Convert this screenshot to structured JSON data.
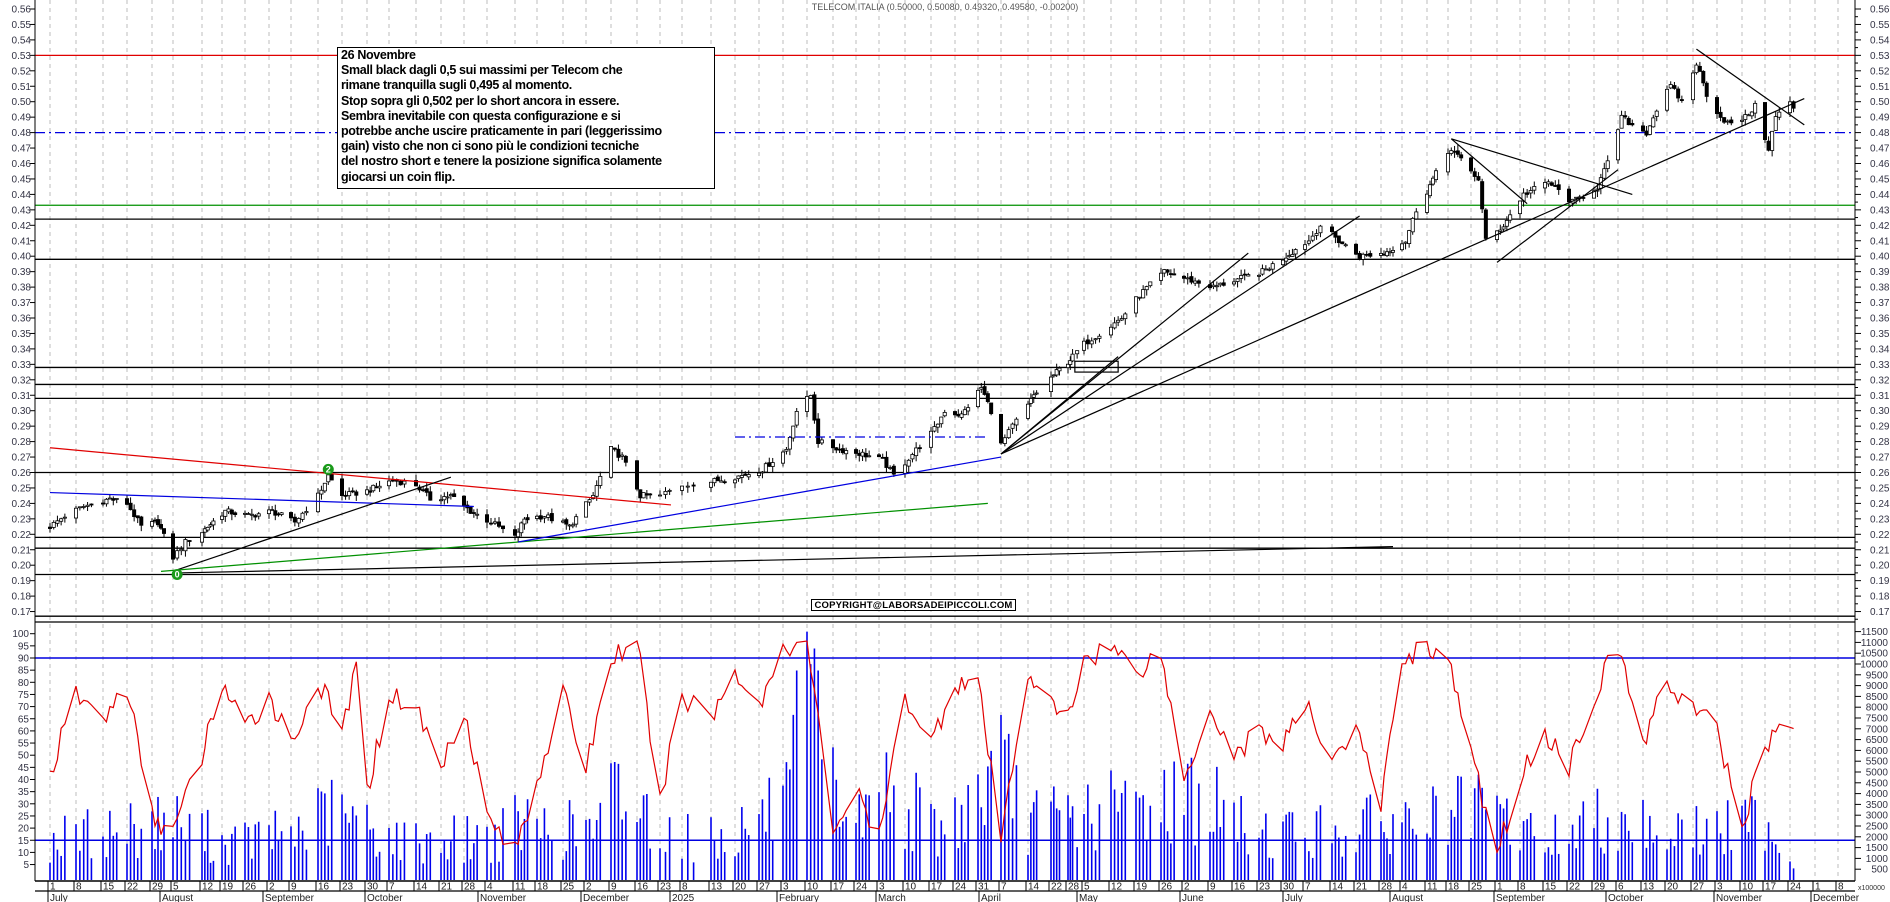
{
  "title": "TELECOM ITALIA (0.50000, 0.50080, 0.49320, 0.49580, -0.00200)",
  "annotation": {
    "lines": [
      "26 Novembre",
      "Small black dagli 0,5 sui massimi per Telecom che",
      "rimane tranquilla sugli 0,495 al momento.",
      "Stop sopra gli 0,502 per lo short ancora in essere.",
      "Sembra inevitabile con questa configurazione e si",
      "potrebbe anche uscire praticamente in pari (leggerissimo",
      "gain) visto che non ci sono più le condizioni tecniche",
      "del nostro short e tenere la posizione significa solamente",
      "giocarsi un coin flip."
    ]
  },
  "copyright": "COPYRIGHT@LABORSADEIPICCOLI.COM",
  "volume_unit": "x100000",
  "markers": [
    {
      "label": "0",
      "date": "2024-08-06",
      "price": 0.194,
      "color": "#1a9a1a"
    },
    {
      "label": "2",
      "date": "2024-09-19",
      "price": 0.262,
      "color": "#1a9a1a"
    }
  ],
  "chart_data": {
    "type": "candlestick",
    "price_axis": {
      "min": 0.17,
      "max": 0.56,
      "step": 0.01
    },
    "oscillator_axis": {
      "min": 5,
      "max": 100,
      "step": 5
    },
    "volume_axis": {
      "min": 500,
      "max": 11500,
      "step": 500
    },
    "grid": "vertical dashed weekly",
    "week_labels": [
      "1",
      "8",
      "15",
      "22",
      "29",
      "5",
      "12",
      "19",
      "26",
      "2",
      "9",
      "16",
      "23",
      "30",
      "7",
      "14",
      "21",
      "28",
      "4",
      "11",
      "18",
      "25",
      "2",
      "9",
      "16",
      "23",
      "8",
      "13",
      "20",
      "27",
      "3",
      "10",
      "17",
      "24",
      "3",
      "10",
      "17",
      "24",
      "31",
      "7",
      "14",
      "22",
      "28",
      "5",
      "12",
      "19",
      "26",
      "2",
      "9",
      "16",
      "23",
      "30",
      "7",
      "14",
      "21",
      "28",
      "4",
      "11",
      "18",
      "25",
      "1",
      "8",
      "15",
      "22",
      "29",
      "6",
      "13",
      "20",
      "27",
      "3",
      "10",
      "17",
      "24",
      "1",
      "8"
    ],
    "month_labels": [
      "July",
      "August",
      "September",
      "October",
      "November",
      "December",
      "2025",
      "February",
      "March",
      "April",
      "May",
      "June",
      "July",
      "August",
      "September",
      "October",
      "November",
      "December"
    ],
    "price_closes": [
      [
        "2024-07-01",
        0.225
      ],
      [
        "2024-07-05",
        0.232
      ],
      [
        "2024-07-10",
        0.238
      ],
      [
        "2024-07-17",
        0.243
      ],
      [
        "2024-07-22",
        0.24
      ],
      [
        "2024-07-26",
        0.225
      ],
      [
        "2024-07-31",
        0.228
      ],
      [
        "2024-08-05",
        0.205
      ],
      [
        "2024-08-08",
        0.215
      ],
      [
        "2024-08-14",
        0.225
      ],
      [
        "2024-08-20",
        0.235
      ],
      [
        "2024-08-27",
        0.232
      ],
      [
        "2024-09-03",
        0.235
      ],
      [
        "2024-09-10",
        0.228
      ],
      [
        "2024-09-16",
        0.245
      ],
      [
        "2024-09-19",
        0.258
      ],
      [
        "2024-09-23",
        0.245
      ],
      [
        "2024-09-30",
        0.248
      ],
      [
        "2024-10-08",
        0.255
      ],
      [
        "2024-10-14",
        0.252
      ],
      [
        "2024-10-18",
        0.243
      ],
      [
        "2024-10-24",
        0.245
      ],
      [
        "2024-10-30",
        0.235
      ],
      [
        "2024-11-05",
        0.228
      ],
      [
        "2024-11-11",
        0.218
      ],
      [
        "2024-11-14",
        0.23
      ],
      [
        "2024-11-20",
        0.232
      ],
      [
        "2024-11-27",
        0.225
      ],
      [
        "2024-12-04",
        0.245
      ],
      [
        "2024-12-09",
        0.275
      ],
      [
        "2024-12-12",
        0.27
      ],
      [
        "2024-12-17",
        0.245
      ],
      [
        "2024-12-23",
        0.245
      ],
      [
        "2025-01-08",
        0.252
      ],
      [
        "2025-01-15",
        0.255
      ],
      [
        "2025-01-22",
        0.258
      ],
      [
        "2025-01-28",
        0.262
      ],
      [
        "2025-02-04",
        0.275
      ],
      [
        "2025-02-07",
        0.3
      ],
      [
        "2025-02-11",
        0.31
      ],
      [
        "2025-02-13",
        0.28
      ],
      [
        "2025-02-19",
        0.275
      ],
      [
        "2025-02-26",
        0.272
      ],
      [
        "2025-03-04",
        0.268
      ],
      [
        "2025-03-07",
        0.258
      ],
      [
        "2025-03-12",
        0.272
      ],
      [
        "2025-03-18",
        0.288
      ],
      [
        "2025-03-21",
        0.3
      ],
      [
        "2025-03-26",
        0.297
      ],
      [
        "2025-04-01",
        0.315
      ],
      [
        "2025-04-04",
        0.3
      ],
      [
        "2025-04-07",
        0.278
      ],
      [
        "2025-04-10",
        0.29
      ],
      [
        "2025-04-16",
        0.31
      ],
      [
        "2025-04-24",
        0.325
      ],
      [
        "2025-04-30",
        0.335
      ],
      [
        "2025-05-06",
        0.345
      ],
      [
        "2025-05-12",
        0.355
      ],
      [
        "2025-05-15",
        0.36
      ],
      [
        "2025-05-20",
        0.375
      ],
      [
        "2025-05-27",
        0.39
      ],
      [
        "2025-06-03",
        0.385
      ],
      [
        "2025-06-10",
        0.38
      ],
      [
        "2025-06-17",
        0.385
      ],
      [
        "2025-06-24",
        0.39
      ],
      [
        "2025-07-01",
        0.4
      ],
      [
        "2025-07-08",
        0.41
      ],
      [
        "2025-07-11",
        0.42
      ],
      [
        "2025-07-16",
        0.41
      ],
      [
        "2025-07-22",
        0.4
      ],
      [
        "2025-07-29",
        0.402
      ],
      [
        "2025-08-05",
        0.41
      ],
      [
        "2025-08-08",
        0.43
      ],
      [
        "2025-08-13",
        0.45
      ],
      [
        "2025-08-19",
        0.47
      ],
      [
        "2025-08-22",
        0.462
      ],
      [
        "2025-08-27",
        0.45
      ],
      [
        "2025-08-29",
        0.41
      ],
      [
        "2025-09-03",
        0.42
      ],
      [
        "2025-09-09",
        0.44
      ],
      [
        "2025-09-16",
        0.448
      ],
      [
        "2025-09-23",
        0.435
      ],
      [
        "2025-09-30",
        0.445
      ],
      [
        "2025-10-03",
        0.46
      ],
      [
        "2025-10-07",
        0.49
      ],
      [
        "2025-10-10",
        0.485
      ],
      [
        "2025-10-14",
        0.48
      ],
      [
        "2025-10-17",
        0.495
      ],
      [
        "2025-10-21",
        0.51
      ],
      [
        "2025-10-24",
        0.5
      ],
      [
        "2025-10-28",
        0.525
      ],
      [
        "2025-10-31",
        0.505
      ],
      [
        "2025-11-04",
        0.49
      ],
      [
        "2025-11-07",
        0.485
      ],
      [
        "2025-11-11",
        0.49
      ],
      [
        "2025-11-14",
        0.497
      ],
      [
        "2025-11-18",
        0.47
      ],
      [
        "2025-11-20",
        0.49
      ],
      [
        "2025-11-24",
        0.5
      ],
      [
        "2025-11-25",
        0.496
      ]
    ],
    "last_candle": {
      "open": 0.5,
      "high": 0.5008,
      "low": 0.4932,
      "close": 0.4958,
      "change": -0.002
    },
    "oscillator": [
      [
        "2024-07-01",
        42
      ],
      [
        "2024-07-08",
        75
      ],
      [
        "2024-07-15",
        65
      ],
      [
        "2024-07-22",
        78
      ],
      [
        "2024-07-29",
        25
      ],
      [
        "2024-08-05",
        18
      ],
      [
        "2024-08-12",
        50
      ],
      [
        "2024-08-19",
        80
      ],
      [
        "2024-08-26",
        60
      ],
      [
        "2024-09-02",
        75
      ],
      [
        "2024-09-09",
        55
      ],
      [
        "2024-09-16",
        80
      ],
      [
        "2024-09-23",
        60
      ],
      [
        "2024-09-27",
        85
      ],
      [
        "2024-09-30",
        35
      ],
      [
        "2024-10-07",
        75
      ],
      [
        "2024-10-14",
        70
      ],
      [
        "2024-10-21",
        45
      ],
      [
        "2024-10-28",
        70
      ],
      [
        "2024-11-04",
        25
      ],
      [
        "2024-11-11",
        10
      ],
      [
        "2024-11-18",
        40
      ],
      [
        "2024-11-25",
        75
      ],
      [
        "2024-12-02",
        45
      ],
      [
        "2024-12-09",
        90
      ],
      [
        "2024-12-16",
        97
      ],
      [
        "2024-12-23",
        30
      ],
      [
        "2025-01-08",
        75
      ],
      [
        "2025-01-13",
        65
      ],
      [
        "2025-01-20",
        85
      ],
      [
        "2025-01-27",
        70
      ],
      [
        "2025-02-03",
        95
      ],
      [
        "2025-02-10",
        97
      ],
      [
        "2025-02-17",
        20
      ],
      [
        "2025-02-24",
        35
      ],
      [
        "2025-03-03",
        15
      ],
      [
        "2025-03-10",
        75
      ],
      [
        "2025-03-17",
        55
      ],
      [
        "2025-03-24",
        80
      ],
      [
        "2025-03-31",
        80
      ],
      [
        "2025-04-07",
        15
      ],
      [
        "2025-04-14",
        85
      ],
      [
        "2025-04-22",
        70
      ],
      [
        "2025-04-28",
        65
      ],
      [
        "2025-05-05",
        90
      ],
      [
        "2025-05-12",
        95
      ],
      [
        "2025-05-19",
        85
      ],
      [
        "2025-05-26",
        92
      ],
      [
        "2025-06-02",
        40
      ],
      [
        "2025-06-09",
        70
      ],
      [
        "2025-06-16",
        50
      ],
      [
        "2025-06-23",
        60
      ],
      [
        "2025-06-30",
        55
      ],
      [
        "2025-07-07",
        70
      ],
      [
        "2025-07-14",
        50
      ],
      [
        "2025-07-21",
        60
      ],
      [
        "2025-07-28",
        30
      ],
      [
        "2025-08-04",
        90
      ],
      [
        "2025-08-11",
        95
      ],
      [
        "2025-08-18",
        90
      ],
      [
        "2025-08-25",
        50
      ],
      [
        "2025-09-01",
        10
      ],
      [
        "2025-09-08",
        40
      ],
      [
        "2025-09-15",
        60
      ],
      [
        "2025-09-22",
        45
      ],
      [
        "2025-09-29",
        75
      ],
      [
        "2025-10-06",
        95
      ],
      [
        "2025-10-13",
        55
      ],
      [
        "2025-10-20",
        80
      ],
      [
        "2025-10-27",
        70
      ],
      [
        "2025-11-03",
        60
      ],
      [
        "2025-11-10",
        20
      ],
      [
        "2025-11-17",
        55
      ],
      [
        "2025-11-25",
        65
      ]
    ],
    "oscillator_levels": [
      90,
      15
    ],
    "volume": [
      [
        "2024-07-01",
        2000
      ],
      [
        "2024-07-15",
        2500
      ],
      [
        "2024-08-05",
        3000
      ],
      [
        "2024-08-20",
        1800
      ],
      [
        "2024-09-10",
        2500
      ],
      [
        "2024-09-20",
        3500
      ],
      [
        "2024-10-10",
        2000
      ],
      [
        "2024-11-05",
        2200
      ],
      [
        "2024-11-12",
        2800
      ],
      [
        "2024-12-05",
        2500
      ],
      [
        "2024-12-10",
        4500
      ],
      [
        "2024-12-17",
        3500
      ],
      [
        "2025-01-15",
        2000
      ],
      [
        "2025-02-05",
        4000
      ],
      [
        "2025-02-07",
        7000
      ],
      [
        "2025-02-10",
        8500
      ],
      [
        "2025-02-12",
        9500
      ],
      [
        "2025-02-14",
        5000
      ],
      [
        "2025-02-25",
        3000
      ],
      [
        "2025-03-05",
        4500
      ],
      [
        "2025-03-20",
        2500
      ],
      [
        "2025-04-07",
        5500
      ],
      [
        "2025-04-15",
        3000
      ],
      [
        "2025-05-10",
        3500
      ],
      [
        "2025-06-05",
        4500
      ],
      [
        "2025-06-20",
        2500
      ],
      [
        "2025-07-15",
        2500
      ],
      [
        "2025-08-05",
        3000
      ],
      [
        "2025-08-29",
        3500
      ],
      [
        "2025-09-15",
        2000
      ],
      [
        "2025-10-06",
        3500
      ],
      [
        "2025-10-20",
        2500
      ],
      [
        "2025-11-05",
        2500
      ],
      [
        "2025-11-18",
        3500
      ],
      [
        "2025-11-25",
        500
      ]
    ],
    "horizontal_lines": [
      {
        "price": 0.53,
        "color": "#e00000",
        "style": "solid"
      },
      {
        "price": 0.48,
        "color": "#0000e0",
        "style": "dashdot"
      },
      {
        "price": 0.433,
        "color": "#009000",
        "style": "solid"
      },
      {
        "price": 0.424,
        "color": "#000000",
        "style": "solid"
      },
      {
        "price": 0.398,
        "color": "#000000",
        "style": "solid"
      },
      {
        "price": 0.328,
        "color": "#000000",
        "style": "solid"
      },
      {
        "price": 0.317,
        "color": "#000000",
        "style": "solid"
      },
      {
        "price": 0.308,
        "color": "#000000",
        "style": "solid"
      },
      {
        "price": 0.26,
        "color": "#000000",
        "style": "solid"
      },
      {
        "price": 0.218,
        "color": "#000000",
        "style": "solid"
      },
      {
        "price": 0.211,
        "color": "#000000",
        "style": "solid"
      },
      {
        "price": 0.194,
        "color": "#000000",
        "style": "solid"
      },
      {
        "price": 0.167,
        "color": "#000000",
        "style": "solid"
      }
    ],
    "trend_lines": [
      {
        "from": [
          "2024-07-01",
          0.276
        ],
        "to": [
          "2024-12-31",
          0.239
        ],
        "color": "#e00000"
      },
      {
        "from": [
          "2024-07-01",
          0.247
        ],
        "to": [
          "2024-10-31",
          0.238
        ],
        "color": "#0000e0"
      },
      {
        "from": [
          "2024-08-06",
          0.197
        ],
        "to": [
          "2024-10-24",
          0.257
        ],
        "color": "#000000"
      },
      {
        "from": [
          "2024-08-01",
          0.196
        ],
        "to": [
          "2025-04-03",
          0.24
        ],
        "color": "#009000"
      },
      {
        "from": [
          "2024-08-06",
          0.195
        ],
        "to": [
          "2025-08-01",
          0.212
        ],
        "color": "#000000"
      },
      {
        "from": [
          "2024-11-12",
          0.215
        ],
        "to": [
          "2025-04-07",
          0.27
        ],
        "color": "#0000e0"
      },
      {
        "from": [
          "2025-01-20",
          0.283
        ],
        "to": [
          "2025-04-03",
          0.283
        ],
        "color": "#0000e0",
        "style": "dashdot"
      },
      {
        "from": [
          "2025-04-07",
          0.272
        ],
        "to": [
          "2025-05-14",
          0.335
        ],
        "color": "#000000"
      },
      {
        "from": [
          "2025-04-07",
          0.272
        ],
        "to": [
          "2025-06-20",
          0.402
        ],
        "color": "#000000"
      },
      {
        "from": [
          "2025-04-07",
          0.272
        ],
        "to": [
          "2025-07-22",
          0.426
        ],
        "color": "#000000"
      },
      {
        "from": [
          "2025-04-07",
          0.272
        ],
        "to": [
          "2025-11-28",
          0.502
        ],
        "color": "#000000"
      },
      {
        "from": [
          "2025-08-19",
          0.476
        ],
        "to": [
          "2025-10-10",
          0.44
        ],
        "color": "#000000"
      },
      {
        "from": [
          "2025-08-19",
          0.476
        ],
        "to": [
          "2025-09-10",
          0.434
        ],
        "color": "#000000"
      },
      {
        "from": [
          "2025-09-01",
          0.396
        ],
        "to": [
          "2025-10-06",
          0.456
        ],
        "color": "#000000"
      },
      {
        "from": [
          "2025-10-28",
          0.534
        ],
        "to": [
          "2025-11-28",
          0.485
        ],
        "color": "#000000"
      }
    ],
    "rectangles": [
      {
        "from": [
          "2025-05-01",
          0.332
        ],
        "to": [
          "2025-05-14",
          0.325
        ],
        "color": "#000000"
      }
    ]
  }
}
